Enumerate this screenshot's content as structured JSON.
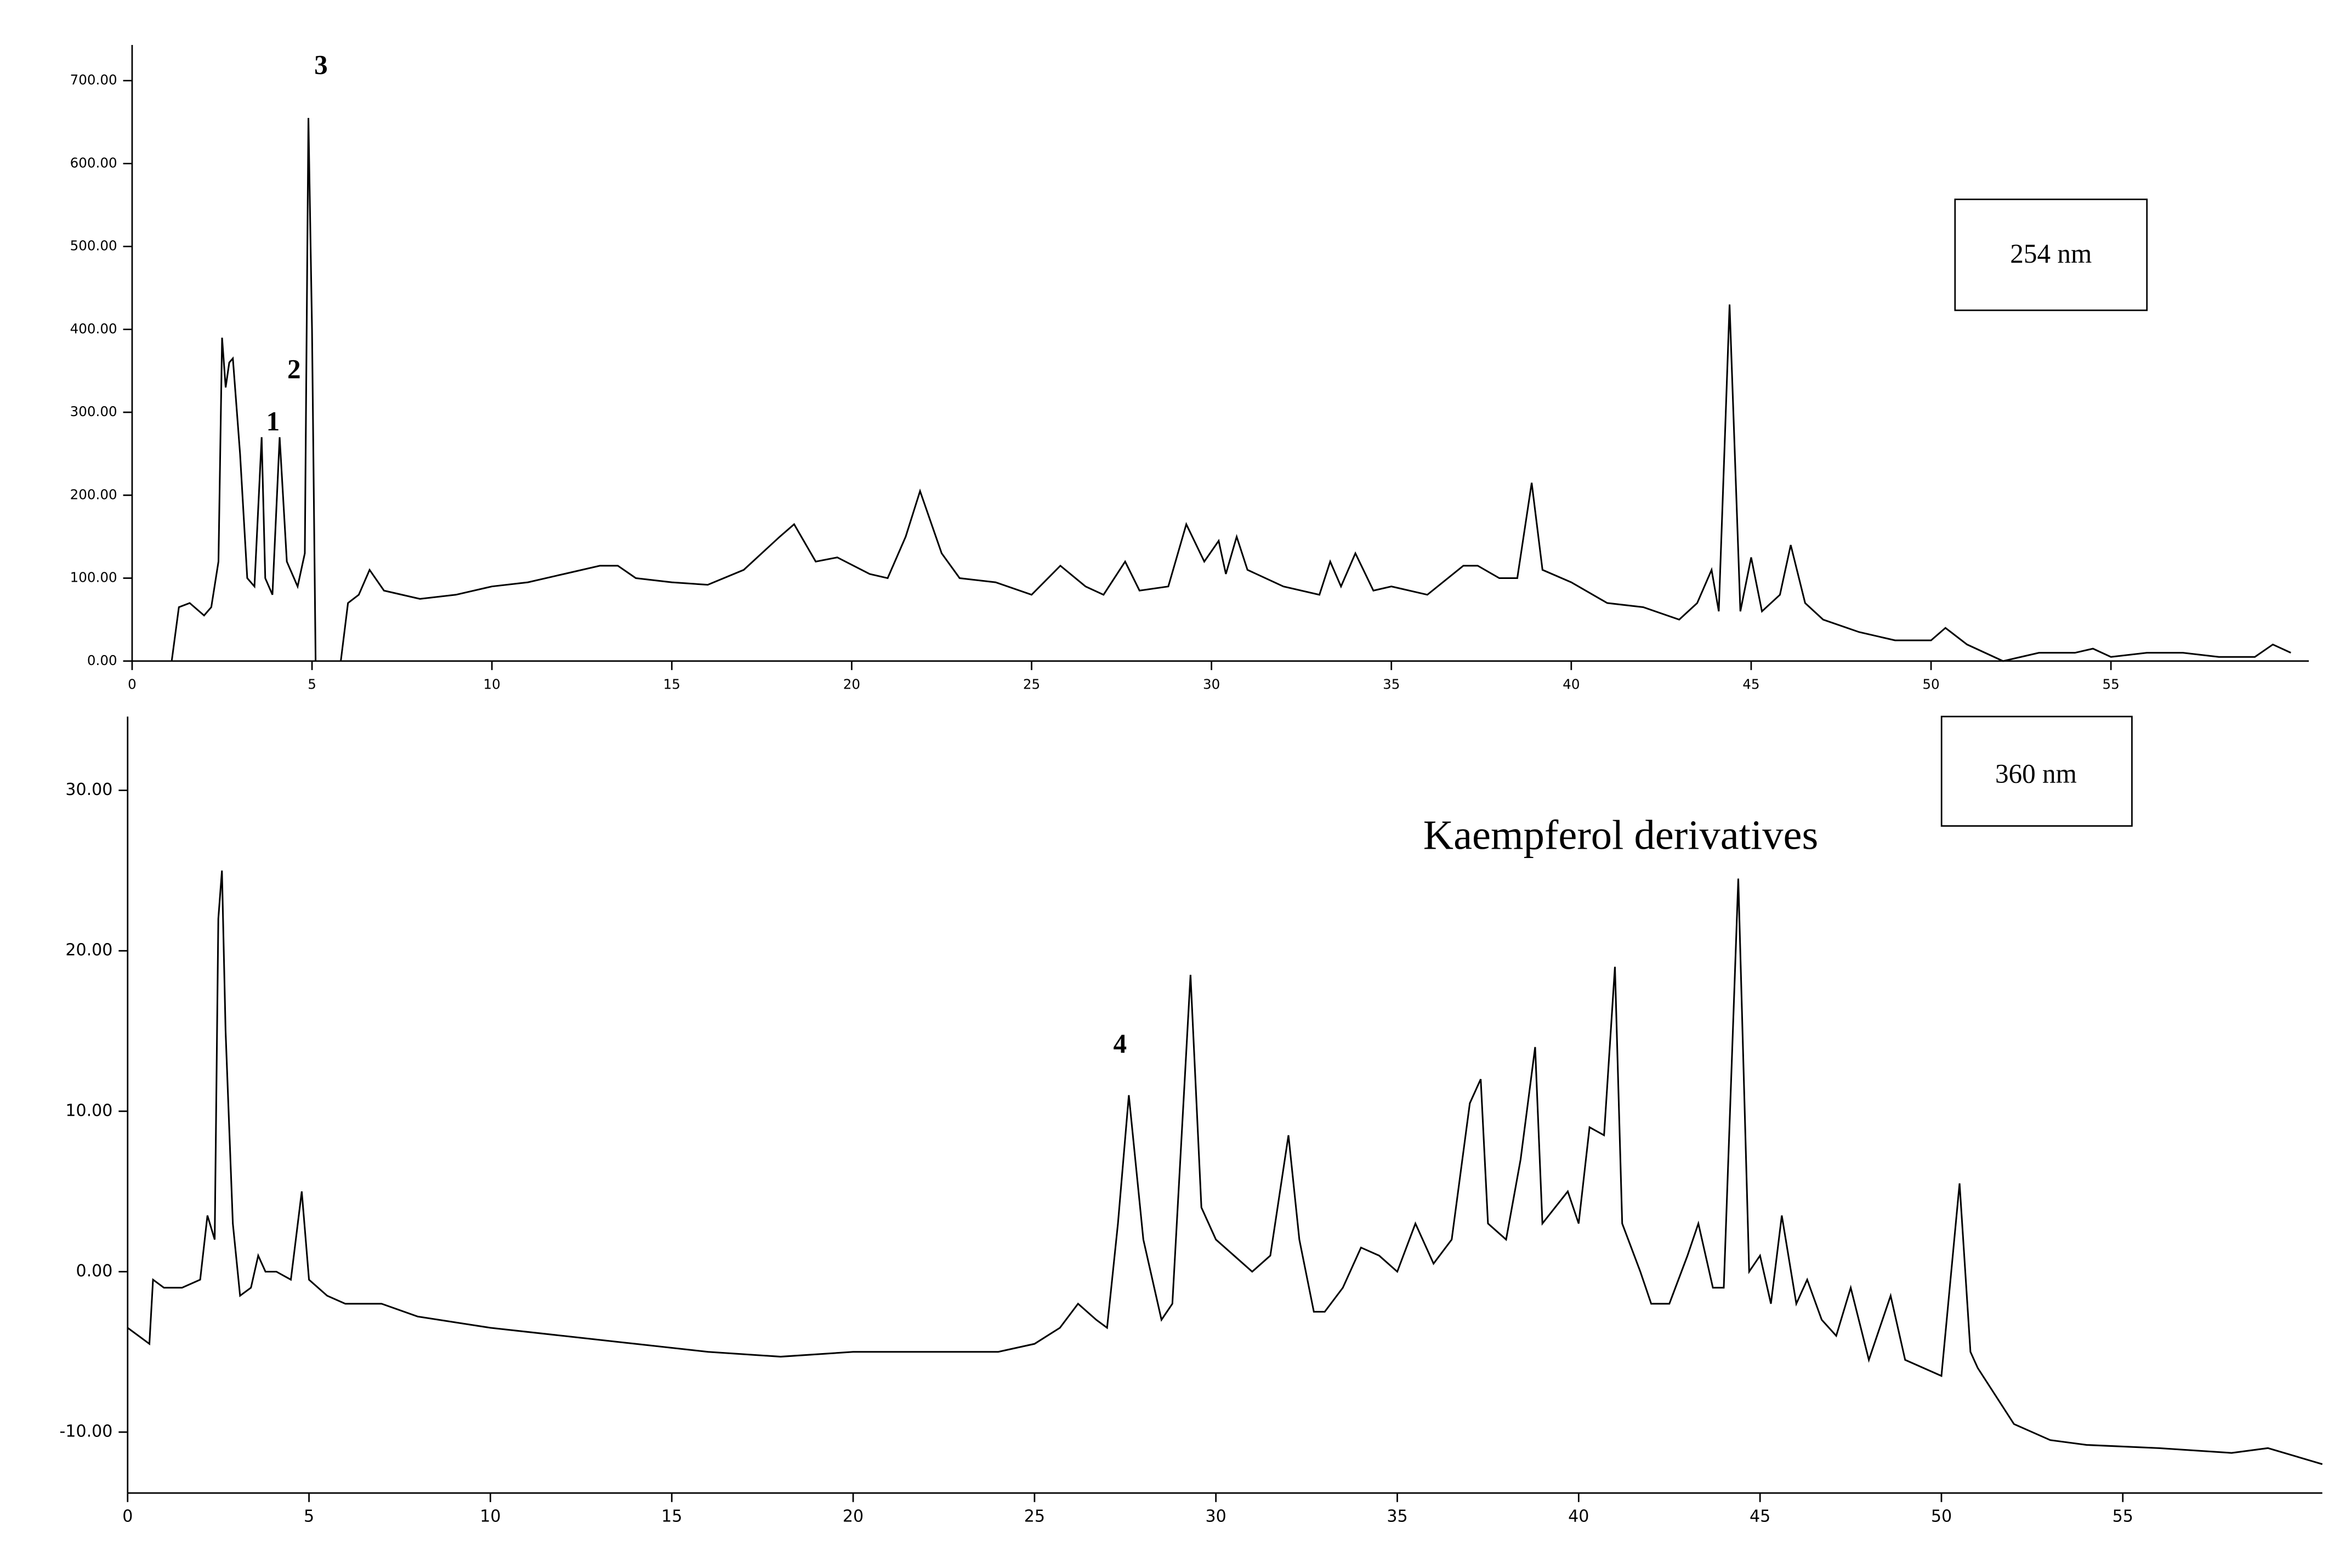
{
  "chart_data": [
    {
      "type": "line",
      "label": "254 nm",
      "annotations": [
        "1",
        "2",
        "3"
      ],
      "xlim": [
        0,
        60.5
      ],
      "xticks": [
        0,
        5,
        10,
        15,
        20,
        25,
        30,
        35,
        40,
        45,
        50,
        55
      ],
      "ylim": [
        0,
        743
      ],
      "yticks": [
        {
          "value": 0,
          "label": "0.00"
        },
        {
          "value": 100,
          "label": "100.00"
        },
        {
          "value": 200,
          "label": "200.00"
        },
        {
          "value": 300,
          "label": "300.00"
        },
        {
          "value": 400,
          "label": "400.00"
        },
        {
          "value": 500,
          "label": "500.00"
        },
        {
          "value": 600,
          "label": "600.00"
        },
        {
          "value": 700,
          "label": "700.00"
        }
      ],
      "series": [
        {
          "color": "#000000",
          "x": [
            1.1,
            1.3,
            1.6,
            2.0,
            2.2,
            2.4,
            2.5,
            2.6,
            2.7,
            2.8,
            3.0,
            3.2,
            3.4,
            3.6,
            3.7,
            3.9,
            4.1,
            4.3,
            4.6,
            4.8,
            4.9,
            5.0,
            5.1,
            null,
            5.8,
            6.0,
            6.3,
            6.6,
            7.0,
            8,
            9,
            10,
            11,
            12,
            13,
            13.5,
            14,
            15,
            16,
            17,
            18,
            18.4,
            19,
            19.6,
            20.5,
            21,
            21.5,
            21.9,
            22.5,
            23,
            24,
            25,
            25.8,
            26.5,
            27,
            27.6,
            28,
            28.8,
            29.3,
            29.8,
            30.2,
            30.4,
            30.7,
            31,
            32,
            33,
            33.3,
            33.6,
            34,
            34.5,
            35,
            36,
            37,
            37.4,
            38,
            38.5,
            38.9,
            39.2,
            40,
            41,
            42,
            43,
            43.5,
            43.9,
            44.1,
            44.4,
            44.7,
            45,
            45.3,
            45.8,
            46.1,
            46.5,
            47,
            48,
            49,
            50,
            50.4,
            51,
            52,
            53,
            54,
            54.5,
            55,
            56,
            57,
            58,
            59,
            59.5,
            60
          ],
          "values": [
            0,
            65,
            70,
            55,
            65,
            120,
            390,
            330,
            360,
            365,
            250,
            100,
            90,
            270,
            100,
            80,
            270,
            120,
            90,
            130,
            655,
            400,
            0,
            null,
            0,
            70,
            80,
            110,
            85,
            75,
            80,
            90,
            95,
            105,
            115,
            115,
            100,
            95,
            92,
            110,
            150,
            165,
            120,
            125,
            105,
            100,
            150,
            205,
            130,
            100,
            95,
            80,
            115,
            90,
            80,
            120,
            85,
            90,
            165,
            120,
            145,
            105,
            150,
            110,
            90,
            80,
            120,
            90,
            130,
            85,
            90,
            80,
            115,
            115,
            100,
            100,
            215,
            110,
            95,
            70,
            65,
            50,
            70,
            110,
            60,
            430,
            60,
            125,
            60,
            80,
            140,
            70,
            50,
            35,
            25,
            25,
            40,
            20,
            0,
            10,
            10,
            15,
            5,
            10,
            10,
            5,
            5,
            20,
            10
          ]
        }
      ]
    },
    {
      "type": "line",
      "label": "360 nm",
      "annotations": [
        "Kaempferol derivatives",
        "4"
      ],
      "xlim": [
        0,
        60.5
      ],
      "xticks": [
        0,
        5,
        10,
        15,
        20,
        25,
        30,
        35,
        40,
        45,
        50,
        55
      ],
      "ylim": [
        -13.8,
        34.6
      ],
      "yticks": [
        {
          "value": -10,
          "label": "-10.00"
        },
        {
          "value": 0,
          "label": "0.00"
        },
        {
          "value": 10,
          "label": "10.00"
        },
        {
          "value": 20,
          "label": "20.00"
        },
        {
          "value": 30,
          "label": "30.00"
        }
      ],
      "series": [
        {
          "color": "#000000",
          "x": [
            0,
            0.6,
            0.7,
            1,
            1.5,
            2,
            2.2,
            2.4,
            2.5,
            2.6,
            2.7,
            2.9,
            3.1,
            3.4,
            3.6,
            3.8,
            4.1,
            4.5,
            4.8,
            5,
            5.5,
            6,
            7,
            8,
            10,
            12,
            14,
            16,
            18,
            20,
            22,
            24,
            25,
            25.7,
            26.2,
            26.7,
            27,
            27.3,
            27.6,
            28,
            28.5,
            28.8,
            29.3,
            29.6,
            30,
            30.5,
            31,
            31.5,
            32,
            32.3,
            32.7,
            33,
            33.5,
            34,
            34.5,
            35,
            35.5,
            36,
            36.5,
            37,
            37.3,
            37.5,
            38,
            38.4,
            38.8,
            39,
            39.7,
            40,
            40.3,
            40.7,
            41,
            41.2,
            41.7,
            42,
            42.5,
            43,
            43.3,
            43.7,
            44,
            44.4,
            44.7,
            45,
            45.3,
            45.6,
            46,
            46.3,
            46.7,
            47.1,
            47.5,
            48,
            48.6,
            49,
            50,
            50.5,
            50.8,
            51,
            52,
            53,
            54,
            56,
            58,
            59,
            60.5
          ],
          "values": [
            -3.5,
            -4.5,
            -0.5,
            -1,
            -1,
            -0.5,
            3.5,
            2,
            22,
            25,
            15,
            3,
            -1.5,
            -1,
            1,
            0,
            0,
            -0.5,
            5,
            -0.5,
            -1.5,
            -2,
            -2,
            -2.8,
            -3.5,
            -4,
            -4.5,
            -5,
            -5.3,
            -5,
            -5,
            -5,
            -4.5,
            -3.5,
            -2,
            -3,
            -3.5,
            3,
            11,
            2,
            -3,
            -2,
            18.5,
            4,
            2,
            1,
            0,
            1,
            8.5,
            2,
            -2.5,
            -2.5,
            -1,
            1.5,
            1,
            0,
            3,
            0.5,
            2,
            10.5,
            12,
            3,
            2,
            7,
            14,
            3,
            5,
            3,
            9,
            8.5,
            19,
            3,
            0,
            -2,
            -2,
            1,
            3,
            -1,
            -1,
            24.5,
            0,
            1,
            -2,
            3.5,
            -2,
            -0.5,
            -3,
            -4,
            -1,
            -5.5,
            -1.5,
            -5.5,
            -6.5,
            5.5,
            -5,
            -6,
            -9.5,
            -10.5,
            -10.8,
            -11,
            -11.3,
            -11,
            -12
          ]
        }
      ]
    }
  ]
}
